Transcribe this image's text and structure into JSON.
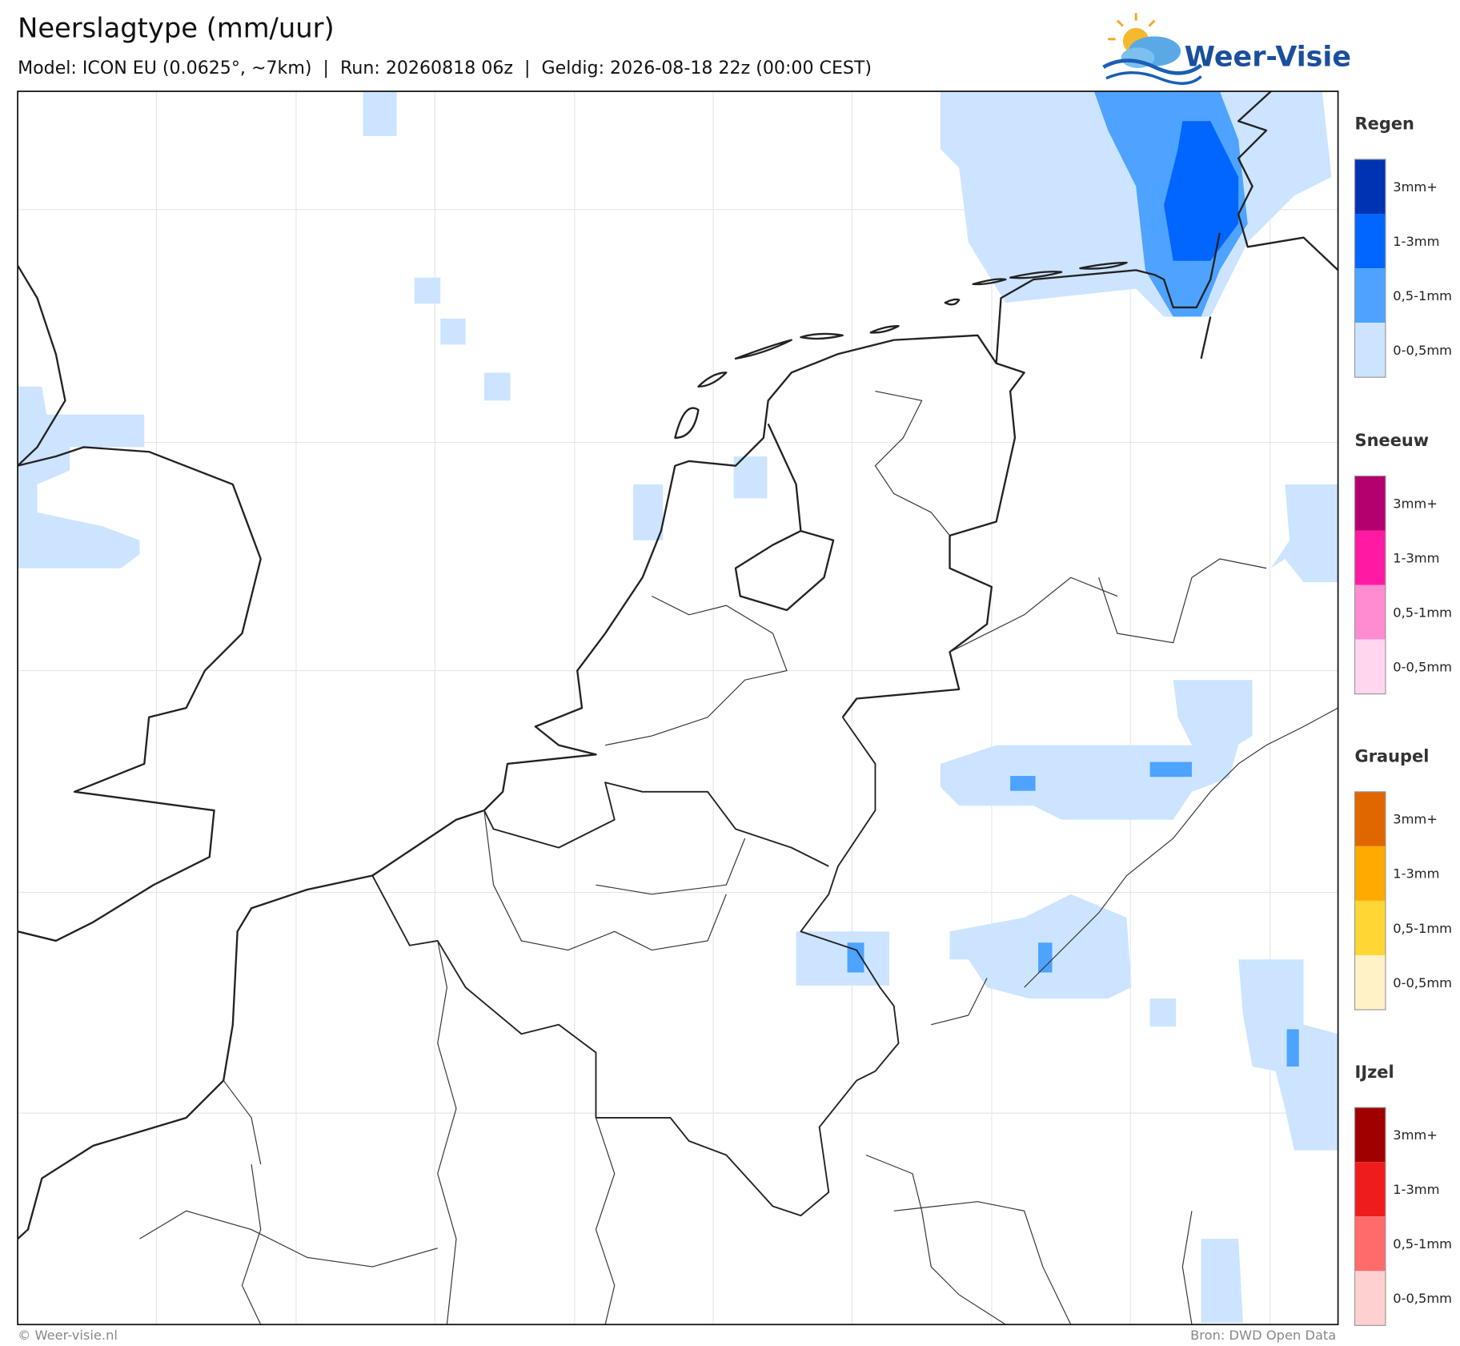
{
  "header": {
    "title": "Neerslagtype (mm/uur)",
    "subtitle": "Model: ICON EU (0.0625°, ~7km)  |  Run: 20260818 06z  |  Geldig: 2026-08-18 22z (00:00 CEST)"
  },
  "logo": {
    "text": "Weer-Visie"
  },
  "legend": [
    {
      "title": "Regen",
      "levels": [
        {
          "label": "3mm+",
          "color": "#0033b3"
        },
        {
          "label": "1-3mm",
          "color": "#0066ff"
        },
        {
          "label": "0,5-1mm",
          "color": "#4da3ff"
        },
        {
          "label": "0-0,5mm",
          "color": "#cce4ff"
        }
      ]
    },
    {
      "title": "Sneeuw",
      "levels": [
        {
          "label": "3mm+",
          "color": "#b3006e"
        },
        {
          "label": "1-3mm",
          "color": "#ff1aa3"
        },
        {
          "label": "0,5-1mm",
          "color": "#ff8cd0"
        },
        {
          "label": "0-0,5mm",
          "color": "#ffd6ee"
        }
      ]
    },
    {
      "title": "Graupel",
      "levels": [
        {
          "label": "3mm+",
          "color": "#e06600"
        },
        {
          "label": "1-3mm",
          "color": "#ffaa00"
        },
        {
          "label": "0,5-1mm",
          "color": "#ffd633"
        },
        {
          "label": "0-0,5mm",
          "color": "#fff2c6"
        }
      ]
    },
    {
      "title": "IJzel",
      "levels": [
        {
          "label": "3mm+",
          "color": "#a00000"
        },
        {
          "label": "1-3mm",
          "color": "#ee1c1c"
        },
        {
          "label": "0,5-1mm",
          "color": "#ff6b6b"
        },
        {
          "label": "0-0,5mm",
          "color": "#ffd0d0"
        }
      ]
    }
  ],
  "footer": {
    "left": "© Weer-visie.nl",
    "right": "Bron: DWD Open Data"
  }
}
